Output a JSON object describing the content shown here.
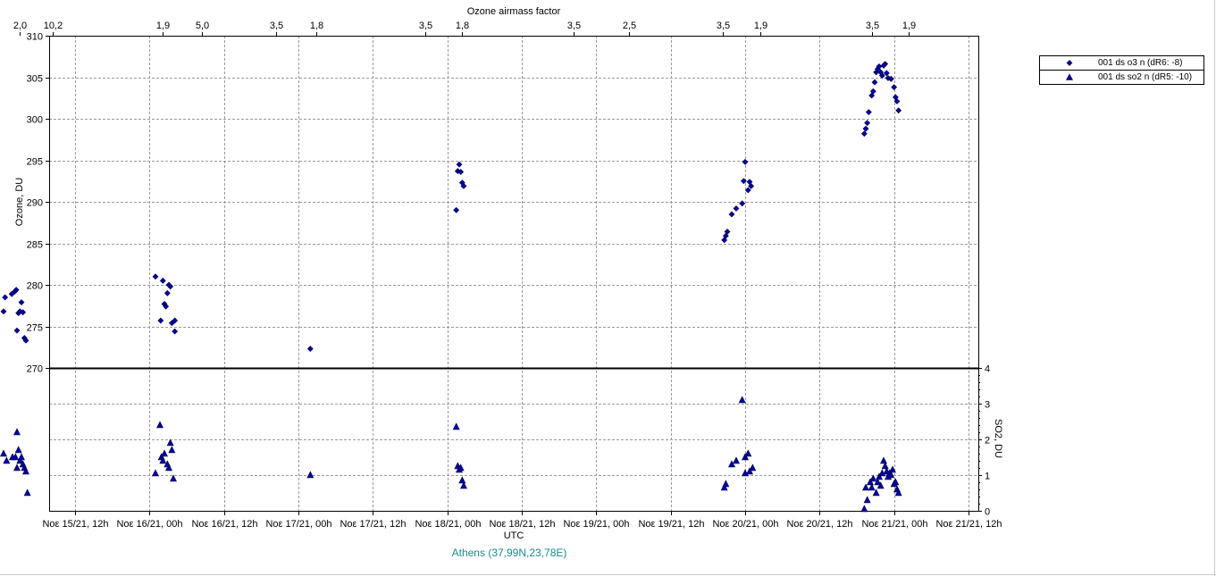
{
  "chart_data": {
    "type": "scatter",
    "title": "Ozone airmass factor",
    "xlabel": "UTC",
    "location": "Athens (37,99N,23,78E)",
    "top_axis_ticks": [
      {
        "x": 0.125,
        "label": "2,0"
      },
      {
        "x": 0.35,
        "label": "10,2"
      },
      {
        "x": 1.09,
        "label": "1,9"
      },
      {
        "x": 1.35,
        "label": "5,0"
      },
      {
        "x": 1.85,
        "label": "3,5"
      },
      {
        "x": 2.12,
        "label": "1,8"
      },
      {
        "x": 2.85,
        "label": "3,5"
      },
      {
        "x": 3.1,
        "label": "1,8"
      },
      {
        "x": 3.85,
        "label": "3,5"
      },
      {
        "x": 4.22,
        "label": "2,5"
      },
      {
        "x": 4.85,
        "label": "3,5"
      },
      {
        "x": 5.1,
        "label": "1,9"
      },
      {
        "x": 5.85,
        "label": "3,5"
      },
      {
        "x": 6.1,
        "label": "1,9"
      }
    ],
    "x_ticks": [
      {
        "x": 0.5,
        "label": "Νοε 15/21, 12h"
      },
      {
        "x": 1.0,
        "label": "Νοε 16/21, 00h"
      },
      {
        "x": 1.5,
        "label": "Νοε 16/21, 12h"
      },
      {
        "x": 2.0,
        "label": "Νοε 17/21, 00h"
      },
      {
        "x": 2.5,
        "label": "Νοε 17/21, 12h"
      },
      {
        "x": 3.0,
        "label": "Νοε 18/21, 00h"
      },
      {
        "x": 3.5,
        "label": "Νοε 18/21, 12h"
      },
      {
        "x": 4.0,
        "label": "Νοε 19/21, 00h"
      },
      {
        "x": 4.5,
        "label": "Νοε 19/21, 12h"
      },
      {
        "x": 5.0,
        "label": "Νοε 20/21, 00h"
      },
      {
        "x": 5.5,
        "label": "Νοε 20/21, 12h"
      },
      {
        "x": 6.0,
        "label": "Νοε 21/21, 00h"
      },
      {
        "x": 6.5,
        "label": "Νοε 21/21, 12h"
      }
    ],
    "xlim": [
      0.0,
      6.5
    ],
    "upper_panel": {
      "ylabel": "Ozone, DU",
      "ylim": [
        270,
        310
      ],
      "ticks": [
        "270",
        "275",
        "280",
        "285",
        "290",
        "295",
        "300",
        "305",
        "310"
      ]
    },
    "lower_panel": {
      "ylabel": "SO2, DU",
      "ylim": [
        0,
        4
      ],
      "ticks": [
        "0",
        "1",
        "2",
        "3",
        "4"
      ]
    },
    "series": [
      {
        "name": "001 ds o3  n (dR6: -8)",
        "marker": "diamond",
        "color": "#0000aa",
        "points": [
          [
            0.02,
            276.8
          ],
          [
            0.03,
            278.5
          ],
          [
            0.075,
            278.9
          ],
          [
            0.095,
            279.2
          ],
          [
            0.105,
            279.4
          ],
          [
            0.11,
            274.5
          ],
          [
            0.12,
            276.6
          ],
          [
            0.13,
            276.8
          ],
          [
            0.14,
            277.9
          ],
          [
            0.15,
            276.7
          ],
          [
            0.16,
            273.6
          ],
          [
            0.17,
            273.3
          ],
          [
            1.04,
            281.0
          ],
          [
            1.075,
            275.7
          ],
          [
            1.09,
            280.5
          ],
          [
            1.1,
            277.7
          ],
          [
            1.11,
            277.4
          ],
          [
            1.12,
            279.0
          ],
          [
            1.13,
            280.0
          ],
          [
            1.14,
            279.8
          ],
          [
            1.15,
            275.4
          ],
          [
            1.17,
            275.7
          ],
          [
            1.17,
            274.4
          ],
          [
            2.08,
            272.3
          ],
          [
            3.06,
            289.0
          ],
          [
            3.07,
            293.7
          ],
          [
            3.08,
            294.5
          ],
          [
            3.09,
            293.6
          ],
          [
            3.1,
            292.3
          ],
          [
            3.11,
            291.9
          ],
          [
            4.86,
            285.4
          ],
          [
            4.87,
            285.9
          ],
          [
            4.88,
            286.4
          ],
          [
            4.91,
            288.5
          ],
          [
            4.94,
            289.2
          ],
          [
            4.98,
            289.8
          ],
          [
            4.99,
            292.5
          ],
          [
            5.0,
            294.8
          ],
          [
            5.02,
            291.4
          ],
          [
            5.03,
            292.4
          ],
          [
            5.04,
            291.9
          ],
          [
            5.8,
            298.2
          ],
          [
            5.81,
            298.8
          ],
          [
            5.82,
            299.5
          ],
          [
            5.83,
            300.8
          ],
          [
            5.85,
            302.8
          ],
          [
            5.86,
            303.3
          ],
          [
            5.87,
            304.4
          ],
          [
            5.88,
            305.6
          ],
          [
            5.89,
            306.0
          ],
          [
            5.9,
            306.3
          ],
          [
            5.91,
            305.6
          ],
          [
            5.92,
            305.2
          ],
          [
            5.93,
            306.4
          ],
          [
            5.94,
            306.6
          ],
          [
            5.95,
            305.5
          ],
          [
            5.96,
            304.9
          ],
          [
            5.98,
            304.8
          ],
          [
            6.0,
            303.8
          ],
          [
            6.01,
            302.6
          ],
          [
            6.02,
            302.1
          ],
          [
            6.03,
            301.0
          ]
        ]
      },
      {
        "name": "001 ds so2 n (dR5: -10)",
        "marker": "triangle",
        "color": "#0000aa",
        "points": [
          [
            0.02,
            1.6
          ],
          [
            0.04,
            1.4
          ],
          [
            0.08,
            1.5
          ],
          [
            0.1,
            1.5
          ],
          [
            0.11,
            2.2
          ],
          [
            0.11,
            1.2
          ],
          [
            0.12,
            1.7
          ],
          [
            0.13,
            1.4
          ],
          [
            0.14,
            1.5
          ],
          [
            0.15,
            1.3
          ],
          [
            0.16,
            1.2
          ],
          [
            0.17,
            1.1
          ],
          [
            0.18,
            0.5
          ],
          [
            1.04,
            1.05
          ],
          [
            1.07,
            2.4
          ],
          [
            1.08,
            1.5
          ],
          [
            1.09,
            1.4
          ],
          [
            1.1,
            1.6
          ],
          [
            1.12,
            1.3
          ],
          [
            1.13,
            1.2
          ],
          [
            1.14,
            1.9
          ],
          [
            1.15,
            1.7
          ],
          [
            1.16,
            0.9
          ],
          [
            2.08,
            1.0
          ],
          [
            3.06,
            2.35
          ],
          [
            3.07,
            1.25
          ],
          [
            3.08,
            1.15
          ],
          [
            3.09,
            1.2
          ],
          [
            3.1,
            0.85
          ],
          [
            3.11,
            0.7
          ],
          [
            4.86,
            0.65
          ],
          [
            4.87,
            0.75
          ],
          [
            4.91,
            1.3
          ],
          [
            4.94,
            1.4
          ],
          [
            4.98,
            3.1
          ],
          [
            5.0,
            1.5
          ],
          [
            5.0,
            1.05
          ],
          [
            5.02,
            1.6
          ],
          [
            5.03,
            1.1
          ],
          [
            5.05,
            1.2
          ],
          [
            5.8,
            0.05
          ],
          [
            5.81,
            0.65
          ],
          [
            5.82,
            0.3
          ],
          [
            5.84,
            0.8
          ],
          [
            5.85,
            0.65
          ],
          [
            5.86,
            0.9
          ],
          [
            5.88,
            0.5
          ],
          [
            5.89,
            0.8
          ],
          [
            5.9,
            0.95
          ],
          [
            5.91,
            0.7
          ],
          [
            5.92,
            1.05
          ],
          [
            5.93,
            1.4
          ],
          [
            5.94,
            1.25
          ],
          [
            5.95,
            1.1
          ],
          [
            5.96,
            0.95
          ],
          [
            5.97,
            1.05
          ],
          [
            5.98,
            1.0
          ],
          [
            5.99,
            1.15
          ],
          [
            6.0,
            0.75
          ],
          [
            6.01,
            0.8
          ],
          [
            6.02,
            0.6
          ],
          [
            6.03,
            0.5
          ]
        ]
      }
    ]
  }
}
